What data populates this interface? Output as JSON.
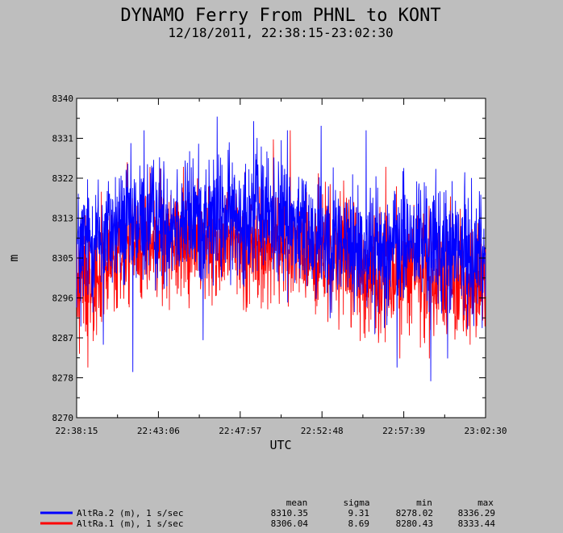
{
  "chart_data": {
    "type": "line",
    "title": "DYNAMO Ferry From PHNL to KONT",
    "subtitle": "12/18/2011, 22:38:15-23:02:30",
    "xlabel": "UTC",
    "ylabel": "m",
    "xlim": [
      "22:38:15",
      "23:02:30"
    ],
    "ylim": [
      8270,
      8340
    ],
    "xticks": [
      "22:38:15",
      "22:43:06",
      "22:47:57",
      "22:52:48",
      "22:57:39",
      "23:02:30"
    ],
    "yticks": [
      "8270",
      "8278",
      "8287",
      "8296",
      "8305",
      "8313",
      "8322",
      "8331",
      "8340"
    ],
    "grid": false,
    "legend_position": "bottom",
    "stats_headers": [
      "mean",
      "sigma",
      "min",
      "max"
    ],
    "series": [
      {
        "name": "AltRa.2 (m), 1 s/sec",
        "color": "#0000ff",
        "stats": [
          "8310.35",
          "9.31",
          "8278.02",
          "8336.29"
        ],
        "trend": [
          [
            0,
            8307
          ],
          [
            60,
            8309
          ],
          [
            120,
            8311
          ],
          [
            180,
            8312
          ],
          [
            240,
            8313
          ],
          [
            300,
            8313
          ],
          [
            360,
            8314
          ],
          [
            420,
            8314
          ],
          [
            480,
            8313
          ],
          [
            540,
            8314
          ],
          [
            600,
            8315
          ],
          [
            660,
            8315
          ],
          [
            720,
            8314
          ],
          [
            780,
            8312
          ],
          [
            840,
            8311
          ],
          [
            900,
            8310
          ],
          [
            960,
            8308
          ],
          [
            1020,
            8307
          ],
          [
            1080,
            8307
          ],
          [
            1140,
            8308
          ],
          [
            1200,
            8309
          ],
          [
            1260,
            8308
          ],
          [
            1320,
            8307
          ],
          [
            1380,
            8306
          ],
          [
            1455,
            8306
          ]
        ],
        "extremes": [
          [
            15,
            8290
          ],
          [
            95,
            8286
          ],
          [
            200,
            8280
          ],
          [
            240,
            8333
          ],
          [
            450,
            8287
          ],
          [
            500,
            8336
          ],
          [
            630,
            8335
          ],
          [
            750,
            8333
          ],
          [
            870,
            8334
          ],
          [
            1030,
            8333
          ],
          [
            1140,
            8281
          ],
          [
            1260,
            8278
          ],
          [
            1320,
            8283
          ]
        ]
      },
      {
        "name": "AltRa.1 (m), 1 s/sec",
        "color": "#ff0000",
        "stats": [
          "8306.04",
          "8.69",
          "8280.43",
          "8333.44"
        ],
        "trend": [
          [
            0,
            8300
          ],
          [
            60,
            8302
          ],
          [
            120,
            8304
          ],
          [
            180,
            8306
          ],
          [
            240,
            8308
          ],
          [
            300,
            8309
          ],
          [
            360,
            8310
          ],
          [
            420,
            8309
          ],
          [
            480,
            8308
          ],
          [
            540,
            8307
          ],
          [
            600,
            8307
          ],
          [
            660,
            8308
          ],
          [
            720,
            8308
          ],
          [
            780,
            8307
          ],
          [
            840,
            8306
          ],
          [
            900,
            8305
          ],
          [
            960,
            8304
          ],
          [
            1020,
            8303
          ],
          [
            1080,
            8302
          ],
          [
            1140,
            8302
          ],
          [
            1200,
            8302
          ],
          [
            1260,
            8301
          ],
          [
            1320,
            8300
          ],
          [
            1380,
            8299
          ],
          [
            1455,
            8300
          ]
        ],
        "extremes": [
          [
            10,
            8284
          ],
          [
            40,
            8281
          ],
          [
            180,
            8326
          ],
          [
            380,
            8325
          ],
          [
            600,
            8324
          ],
          [
            700,
            8331
          ],
          [
            760,
            8333
          ],
          [
            950,
            8322
          ],
          [
            1100,
            8325
          ],
          [
            1150,
            8283
          ],
          [
            1255,
            8283
          ],
          [
            1400,
            8286
          ]
        ]
      }
    ]
  }
}
